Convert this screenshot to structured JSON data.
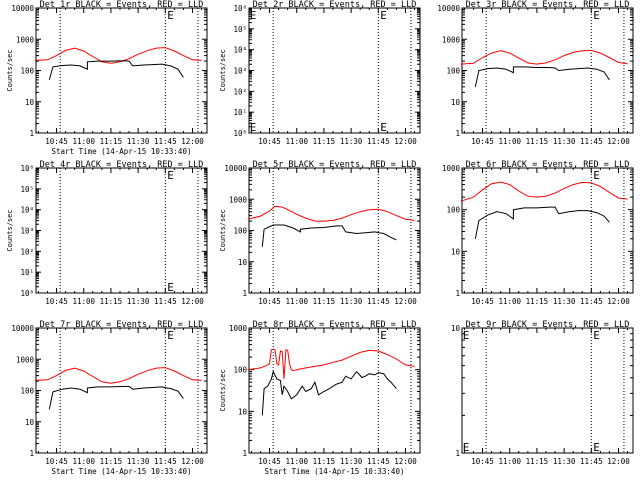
{
  "chart_data": [
    {
      "type": "line",
      "title": "Det 1r BLACK = Events, RED = LLD",
      "ylabel": "Counts/sec",
      "xlabel": "Start Time (14-Apr-15 10:33:40)",
      "xticks": [
        "10:45",
        "11:00",
        "11:15",
        "11:30",
        "11:45",
        "12:00"
      ],
      "yscale": "log",
      "ylim": [
        1,
        10000
      ],
      "yticks": [
        "1",
        "10",
        "100",
        "1000",
        "10000"
      ],
      "vlines": [
        "10:47",
        "11:45",
        "12:03"
      ],
      "markers": [
        {
          "label": "E",
          "x": "11:45"
        }
      ],
      "series": [
        {
          "color": "#ff0000",
          "x": [
            "10:33",
            "10:40",
            "10:45",
            "10:50",
            "10:55",
            "11:00",
            "11:05",
            "11:10",
            "11:15",
            "11:20",
            "11:25",
            "11:30",
            "11:35",
            "11:40",
            "11:45",
            "11:50",
            "11:55",
            "12:00",
            "12:05"
          ],
          "values": [
            210,
            220,
            300,
            440,
            520,
            420,
            280,
            190,
            170,
            190,
            240,
            330,
            430,
            520,
            540,
            420,
            300,
            220,
            210
          ]
        },
        {
          "color": "#000000",
          "x": [
            "10:41",
            "10:43",
            "10:48",
            "10:53",
            "10:58",
            "11:02",
            "11:02",
            "11:08",
            "11:15",
            "11:22",
            "11:25",
            "11:27",
            "11:33",
            "11:38",
            "11:43",
            "11:48",
            "11:52",
            "11:55"
          ],
          "values": [
            50,
            130,
            145,
            150,
            140,
            110,
            190,
            200,
            200,
            205,
            200,
            140,
            150,
            155,
            160,
            140,
            110,
            60
          ]
        }
      ]
    },
    {
      "type": "line",
      "title": "Det 2r BLACK = Events, RED = LLD",
      "ylabel": "Counts/sec",
      "xlabel": "",
      "xticks": [
        "10:45",
        "11:00",
        "11:15",
        "11:30",
        "11:45",
        "12:00"
      ],
      "yscale": "log",
      "ylim": [
        1,
        1000000
      ],
      "yticks": [
        "10⁰",
        "10¹",
        "10²",
        "10³",
        "10⁴",
        "10⁵",
        "10⁶"
      ],
      "vlines": [
        "10:47",
        "11:45",
        "12:03"
      ],
      "markers": [
        {
          "label": "E",
          "x": "10:33"
        },
        {
          "label": "E",
          "x": "11:45"
        }
      ],
      "series": []
    },
    {
      "type": "line",
      "title": "Det 3r BLACK = Events, RED = LLD",
      "ylabel": "",
      "xlabel": "",
      "xticks": [
        "10:45",
        "11:00",
        "11:15",
        "11:30",
        "11:45",
        "12:00"
      ],
      "yscale": "log",
      "ylim": [
        1,
        10000
      ],
      "yticks": [
        "1",
        "10",
        "100",
        "1000",
        "10000"
      ],
      "vlines": [
        "10:47",
        "11:45",
        "12:03"
      ],
      "markers": [
        {
          "label": "E",
          "x": "11:45"
        }
      ],
      "series": [
        {
          "color": "#ff0000",
          "x": [
            "10:33",
            "10:40",
            "10:45",
            "10:50",
            "10:55",
            "11:00",
            "11:05",
            "11:10",
            "11:15",
            "11:20",
            "11:25",
            "11:30",
            "11:35",
            "11:40",
            "11:45",
            "11:50",
            "11:55",
            "12:00",
            "12:05"
          ],
          "values": [
            160,
            170,
            260,
            360,
            430,
            360,
            250,
            175,
            160,
            175,
            220,
            300,
            380,
            430,
            440,
            360,
            260,
            180,
            165
          ]
        },
        {
          "color": "#000000",
          "x": [
            "10:41",
            "10:43",
            "10:48",
            "10:53",
            "10:58",
            "11:02",
            "11:02",
            "11:08",
            "11:15",
            "11:22",
            "11:25",
            "11:27",
            "11:33",
            "11:38",
            "11:43",
            "11:48",
            "11:52",
            "11:55"
          ],
          "values": [
            30,
            100,
            115,
            120,
            110,
            85,
            130,
            130,
            125,
            125,
            120,
            100,
            110,
            115,
            120,
            110,
            90,
            50
          ]
        }
      ]
    },
    {
      "type": "line",
      "title": "Det 4r BLACK = Events, RED = LLD",
      "ylabel": "Counts/sec",
      "xlabel": "",
      "xticks": [
        "10:45",
        "11:00",
        "11:15",
        "11:30",
        "11:45",
        "12:00"
      ],
      "yscale": "log",
      "ylim": [
        1,
        1000000
      ],
      "yticks": [
        "10⁰",
        "10¹",
        "10²",
        "10³",
        "10⁴",
        "10⁵",
        "10⁶"
      ],
      "vlines": [
        "10:47",
        "11:45",
        "12:03"
      ],
      "markers": [
        {
          "label": "E",
          "x": "11:45"
        }
      ],
      "series": []
    },
    {
      "type": "line",
      "title": "Det 5r BLACK = Events, RED = LLD",
      "ylabel": "Counts/sec",
      "xlabel": "",
      "xticks": [
        "10:45",
        "11:00",
        "11:15",
        "11:30",
        "11:45",
        "12:00"
      ],
      "yscale": "log",
      "ylim": [
        1,
        10000
      ],
      "yticks": [
        "1",
        "10",
        "100",
        "1000",
        "10000"
      ],
      "vlines": [
        "10:47",
        "11:45",
        "12:03"
      ],
      "markers": [],
      "series": [
        {
          "color": "#ff0000",
          "x": [
            "10:33",
            "10:40",
            "10:45",
            "10:48",
            "10:52",
            "10:56",
            "11:00",
            "11:05",
            "11:10",
            "11:15",
            "11:20",
            "11:25",
            "11:30",
            "11:35",
            "11:40",
            "11:45",
            "11:50",
            "11:55",
            "12:00",
            "12:05"
          ],
          "values": [
            230,
            290,
            420,
            600,
            560,
            440,
            330,
            250,
            200,
            200,
            210,
            250,
            320,
            400,
            460,
            480,
            400,
            300,
            230,
            210
          ]
        },
        {
          "color": "#000000",
          "x": [
            "10:41",
            "10:42",
            "10:47",
            "10:53",
            "10:58",
            "11:02",
            "11:02",
            "11:08",
            "11:15",
            "11:22",
            "11:25",
            "11:27",
            "11:33",
            "11:38",
            "11:43",
            "11:48",
            "11:52",
            "11:55"
          ],
          "values": [
            30,
            110,
            150,
            150,
            120,
            90,
            110,
            120,
            125,
            140,
            140,
            90,
            80,
            85,
            90,
            80,
            60,
            50
          ]
        }
      ]
    },
    {
      "type": "line",
      "title": "Det 6r BLACK = Events, RED = LLD",
      "ylabel": "",
      "xlabel": "",
      "xticks": [
        "10:45",
        "11:00",
        "11:15",
        "11:30",
        "11:45",
        "12:00"
      ],
      "yscale": "log",
      "ylim": [
        1,
        1000
      ],
      "yticks": [
        "1",
        "10",
        "100",
        "1000"
      ],
      "vlines": [
        "10:47",
        "11:45",
        "12:03"
      ],
      "markers": [
        {
          "label": "E",
          "x": "11:45"
        }
      ],
      "series": [
        {
          "color": "#ff0000",
          "x": [
            "10:33",
            "10:40",
            "10:45",
            "10:50",
            "10:55",
            "11:00",
            "11:05",
            "11:10",
            "11:15",
            "11:20",
            "11:25",
            "11:30",
            "11:35",
            "11:40",
            "11:45",
            "11:50",
            "11:55",
            "12:00",
            "12:05"
          ],
          "values": [
            160,
            200,
            300,
            420,
            460,
            400,
            280,
            210,
            200,
            210,
            250,
            320,
            400,
            450,
            440,
            360,
            260,
            190,
            180
          ]
        },
        {
          "color": "#000000",
          "x": [
            "10:41",
            "10:43",
            "10:48",
            "10:53",
            "10:58",
            "11:02",
            "11:02",
            "11:08",
            "11:15",
            "11:22",
            "11:25",
            "11:27",
            "11:33",
            "11:38",
            "11:43",
            "11:48",
            "11:52",
            "11:55"
          ],
          "values": [
            20,
            55,
            75,
            90,
            80,
            60,
            100,
            110,
            110,
            115,
            115,
            80,
            90,
            95,
            95,
            85,
            70,
            50
          ]
        }
      ]
    },
    {
      "type": "line",
      "title": "Det 7r BLACK = Events, RED = LLD",
      "ylabel": "",
      "xlabel": "Start Time (14-Apr-15 10:33:40)",
      "xticks": [
        "10:45",
        "11:00",
        "11:15",
        "11:30",
        "11:45",
        "12:00"
      ],
      "yscale": "log",
      "ylim": [
        1,
        10000
      ],
      "yticks": [
        "1",
        "10",
        "100",
        "1000",
        "10000"
      ],
      "vlines": [
        "10:47",
        "11:45",
        "12:03"
      ],
      "markers": [
        {
          "label": "E",
          "x": "11:45"
        }
      ],
      "series": [
        {
          "color": "#ff0000",
          "x": [
            "10:33",
            "10:40",
            "10:45",
            "10:50",
            "10:55",
            "11:00",
            "11:05",
            "11:10",
            "11:15",
            "11:20",
            "11:25",
            "11:30",
            "11:35",
            "11:40",
            "11:45",
            "11:50",
            "11:55",
            "12:00",
            "12:05"
          ],
          "values": [
            210,
            220,
            300,
            440,
            520,
            420,
            280,
            190,
            170,
            190,
            240,
            330,
            430,
            520,
            540,
            420,
            300,
            220,
            210
          ]
        },
        {
          "color": "#000000",
          "x": [
            "10:41",
            "10:43",
            "10:48",
            "10:53",
            "10:58",
            "11:02",
            "11:02",
            "11:08",
            "11:15",
            "11:22",
            "11:25",
            "11:27",
            "11:33",
            "11:38",
            "11:43",
            "11:48",
            "11:52",
            "11:55"
          ],
          "values": [
            25,
            90,
            110,
            120,
            110,
            85,
            120,
            130,
            130,
            135,
            135,
            110,
            120,
            125,
            130,
            115,
            95,
            55
          ]
        }
      ]
    },
    {
      "type": "line",
      "title": "Det 8r BLACK = Events, RED = LLD",
      "ylabel": "Counts/sec",
      "xlabel": "Start Time (14-Apr-15 10:33:40)",
      "xticks": [
        "10:45",
        "11:00",
        "11:15",
        "11:30",
        "11:45",
        "12:00"
      ],
      "yscale": "log",
      "ylim": [
        1,
        1000
      ],
      "yticks": [
        "1",
        "10",
        "100",
        "1000"
      ],
      "vlines": [
        "10:47",
        "11:45",
        "12:03"
      ],
      "markers": [
        {
          "label": "E",
          "x": "11:45"
        }
      ],
      "series": [
        {
          "color": "#ff0000",
          "x": [
            "10:33",
            "10:40",
            "10:44",
            "10:45",
            "10:46",
            "10:47",
            "10:48",
            "10:49",
            "10:50",
            "10:51",
            "10:52",
            "10:53",
            "10:54",
            "10:55",
            "10:56",
            "10:57",
            "10:58",
            "11:00",
            "11:05",
            "11:10",
            "11:15",
            "11:20",
            "11:25",
            "11:30",
            "11:35",
            "11:40",
            "11:45",
            "11:50",
            "11:55",
            "12:00",
            "12:05"
          ],
          "values": [
            100,
            110,
            130,
            140,
            300,
            310,
            300,
            140,
            130,
            280,
            270,
            60,
            300,
            290,
            140,
            100,
            95,
            100,
            110,
            120,
            130,
            150,
            170,
            210,
            260,
            290,
            280,
            230,
            180,
            130,
            120
          ]
        },
        {
          "color": "#000000",
          "x": [
            "10:41",
            "10:42",
            "10:44",
            "10:46",
            "10:47",
            "10:49",
            "10:51",
            "10:52",
            "10:53",
            "10:55",
            "10:57",
            "11:00",
            "11:03",
            "11:05",
            "11:08",
            "11:10",
            "11:12",
            "11:15",
            "11:18",
            "11:20",
            "11:22",
            "11:25",
            "11:27",
            "11:30",
            "11:33",
            "11:36",
            "11:38",
            "11:40",
            "11:43",
            "11:45",
            "11:48",
            "11:50",
            "11:52",
            "11:55"
          ],
          "values": [
            8,
            35,
            40,
            60,
            90,
            60,
            55,
            25,
            40,
            30,
            20,
            25,
            40,
            30,
            35,
            50,
            25,
            30,
            35,
            40,
            45,
            50,
            70,
            60,
            90,
            65,
            70,
            80,
            75,
            85,
            80,
            60,
            50,
            35
          ]
        }
      ]
    },
    {
      "type": "line",
      "title": "Det 9r BLACK = Events, RED = LLD",
      "ylabel": "",
      "xlabel": "",
      "xticks": [
        "10:45",
        "11:00",
        "11:15",
        "11:30",
        "11:45",
        "12:00"
      ],
      "yscale": "log",
      "ylim": [
        1,
        10
      ],
      "yticks": [
        "1",
        "10"
      ],
      "vlines": [
        "10:47",
        "11:45",
        "12:03"
      ],
      "markers": [
        {
          "label": "E",
          "x": "10:33"
        },
        {
          "label": "E",
          "x": "11:45"
        }
      ],
      "series": []
    }
  ]
}
